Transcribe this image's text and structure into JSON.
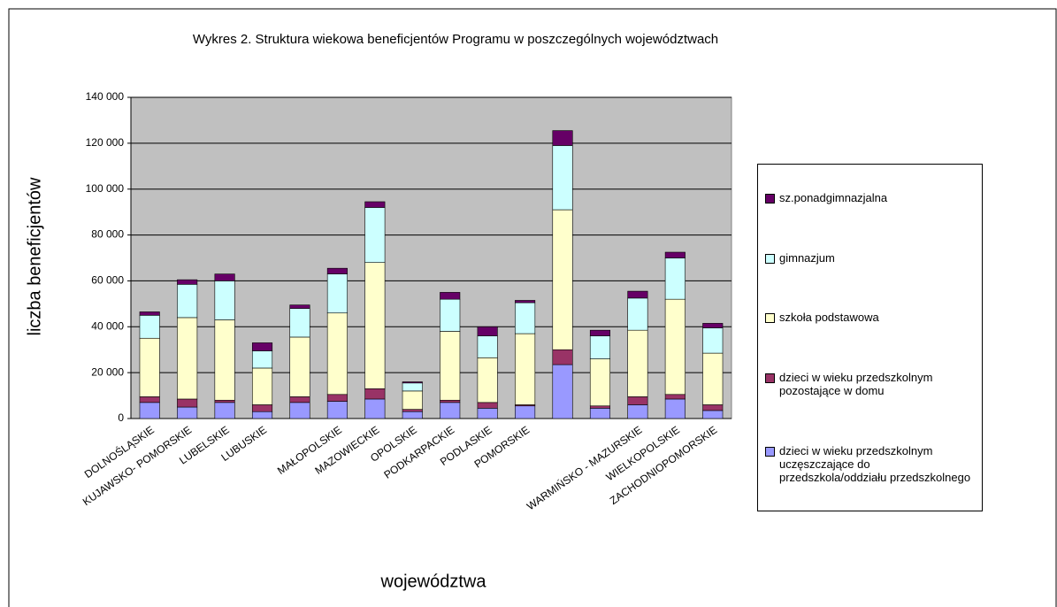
{
  "chart_data": {
    "type": "bar",
    "stacked": true,
    "title": "Wykres 2. Struktura wiekowa beneficjentów Programu w poszczególnych województwach",
    "ylabel": "liczba beneficjentów",
    "xlabel": "województwa",
    "categories": [
      "DOLNOŚLĄSKIE",
      "KUJAWSKO- POMORSKIE",
      "LUBELSKIE",
      "LUBUSKIE",
      null,
      "MAŁOPOLSKIE",
      "MAZOWIECKIE",
      "OPOLSKIE",
      "PODKARPACKIE",
      "PODLASKIE",
      "POMORSKIE",
      null,
      null,
      "WARMIŃSKO - MAZURSKIE",
      "WIELKOPOLSKIE",
      "ZACHODNIOPOMORSKIE"
    ],
    "series": [
      {
        "name": "dzieci w wieku przedszkolnym uczęszczające do przedszkola/oddziału przedszkolnego",
        "color": "#9999ff",
        "values": [
          7000,
          5000,
          7000,
          3000,
          7000,
          7500,
          8500,
          3000,
          7000,
          4500,
          5500,
          23500,
          4500,
          6000,
          8500,
          3500
        ]
      },
      {
        "name": "dzieci w wieku przedszkolnym pozostające w domu",
        "color": "#993366",
        "values": [
          2500,
          3500,
          1000,
          3000,
          2500,
          3000,
          4500,
          1000,
          1000,
          2500,
          500,
          6500,
          1000,
          3500,
          2000,
          2500
        ]
      },
      {
        "name": "szkoła podstawowa",
        "color": "#ffffcc",
        "values": [
          25500,
          35500,
          35000,
          16000,
          26000,
          35500,
          55000,
          8000,
          30000,
          19500,
          31000,
          61000,
          20500,
          29000,
          41500,
          22500
        ]
      },
      {
        "name": "gimnazjum",
        "color": "#ccffff",
        "values": [
          10000,
          14500,
          17000,
          7500,
          12500,
          17000,
          24000,
          3500,
          14000,
          9500,
          13500,
          28000,
          10000,
          14000,
          18000,
          11000
        ]
      },
      {
        "name": "sz.ponadgimnazjalna",
        "color": "#660066",
        "values": [
          1500,
          2000,
          3000,
          3500,
          1500,
          2500,
          2500,
          500,
          3000,
          4000,
          1000,
          6500,
          2500,
          3000,
          2500,
          2000
        ]
      }
    ],
    "ylim": [
      0,
      140000
    ],
    "yticks": [
      {
        "value": 0,
        "label": "0"
      },
      {
        "value": 20000,
        "label": "20 000"
      },
      {
        "value": 40000,
        "label": "40 000"
      },
      {
        "value": 60000,
        "label": "60 000"
      },
      {
        "value": 80000,
        "label": "80 000"
      },
      {
        "value": 100000,
        "label": "100 000"
      },
      {
        "value": 120000,
        "label": "120 000"
      },
      {
        "value": 140000,
        "label": "140 000"
      }
    ],
    "grid": true,
    "plot_background": "#c0c0c0",
    "legend": "right"
  }
}
